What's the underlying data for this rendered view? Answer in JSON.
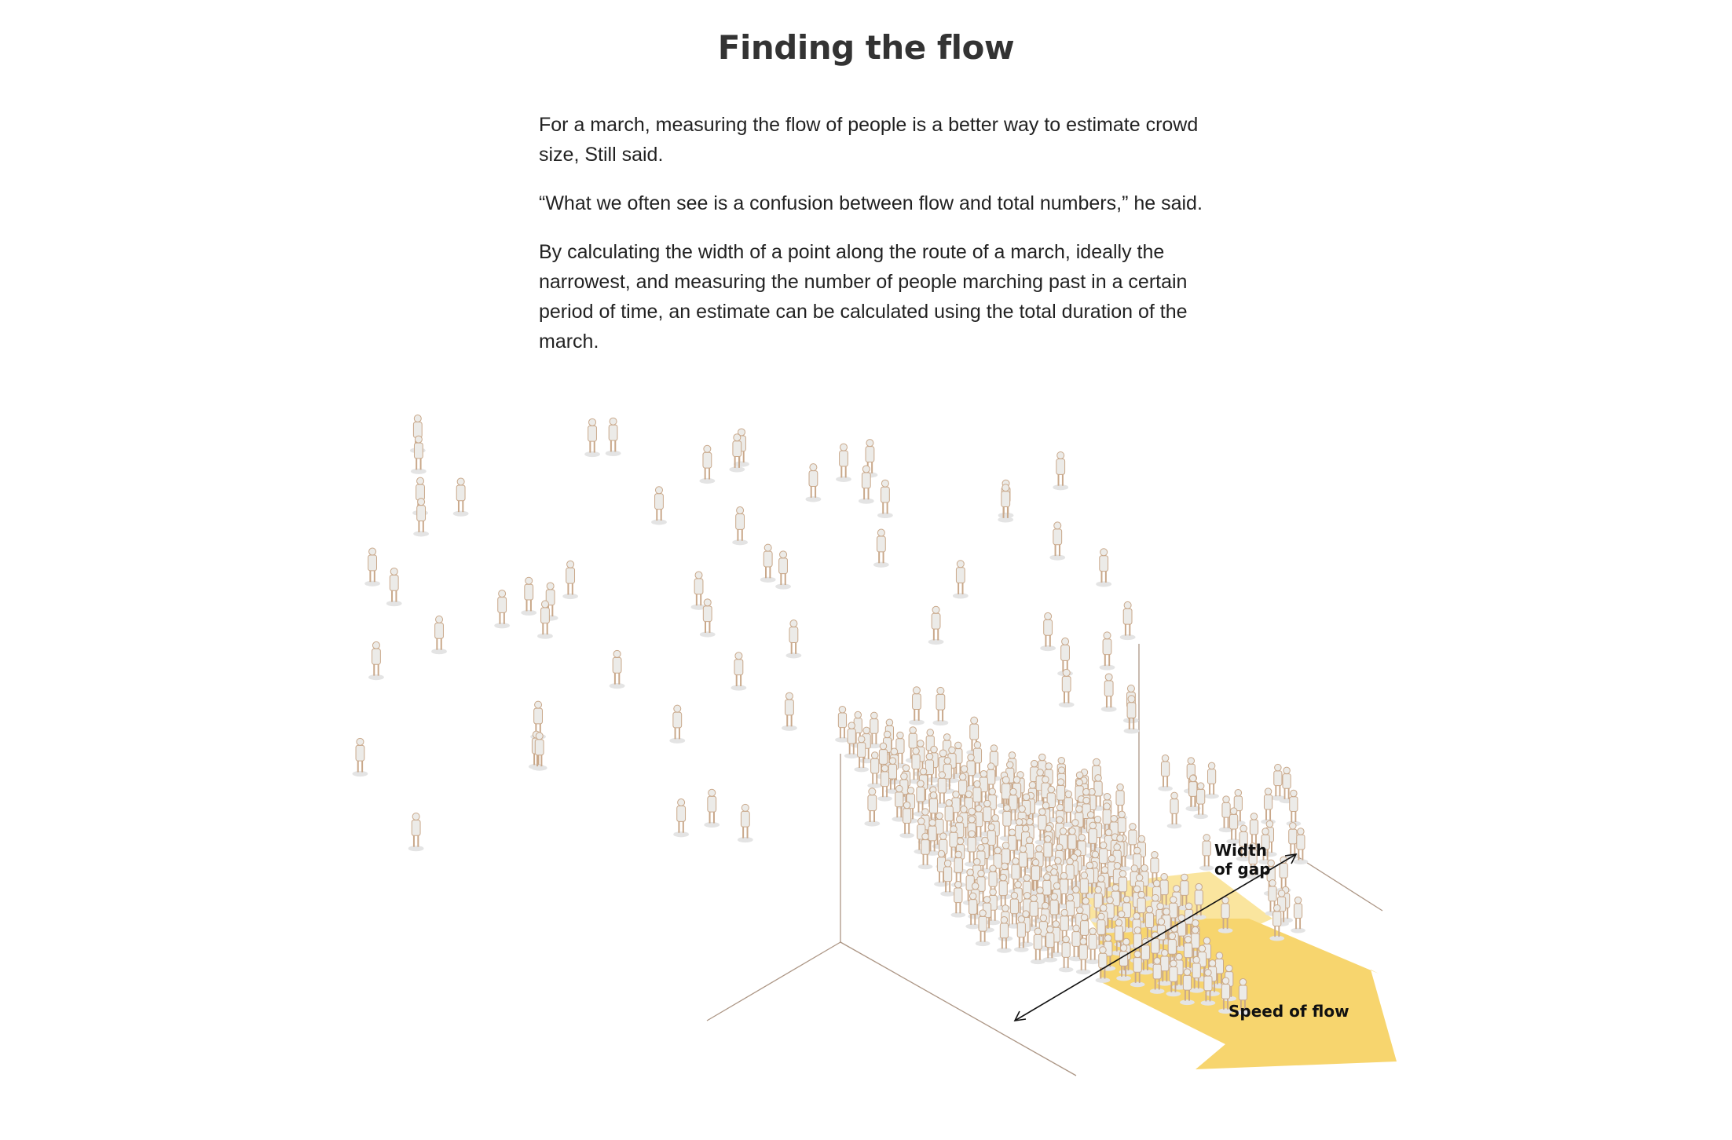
{
  "article": {
    "title": "Finding the flow",
    "paragraphs": [
      "For a march, measuring the flow of people is a better way to estimate crowd size, Still said.",
      "“What we often see is a confusion between flow and total numbers,” he said.",
      "By calculating the width of a point along the route of a march, ideally the narrowest, and measuring the number of people marching past in a certain period of time, an estimate can be calculated using the total duration of the march."
    ]
  },
  "illustration": {
    "width_label_line1": "Width",
    "width_label_line2": "of gap",
    "speed_label": "Speed of flow",
    "colors": {
      "figure_outline": "#c9a88a",
      "figure_fill": "#ecebe8",
      "shadow": "#e4e4e4",
      "arrow": "#f7d56e",
      "highlight": "#f6cf4f",
      "guide_line": "#8a6a52"
    }
  }
}
